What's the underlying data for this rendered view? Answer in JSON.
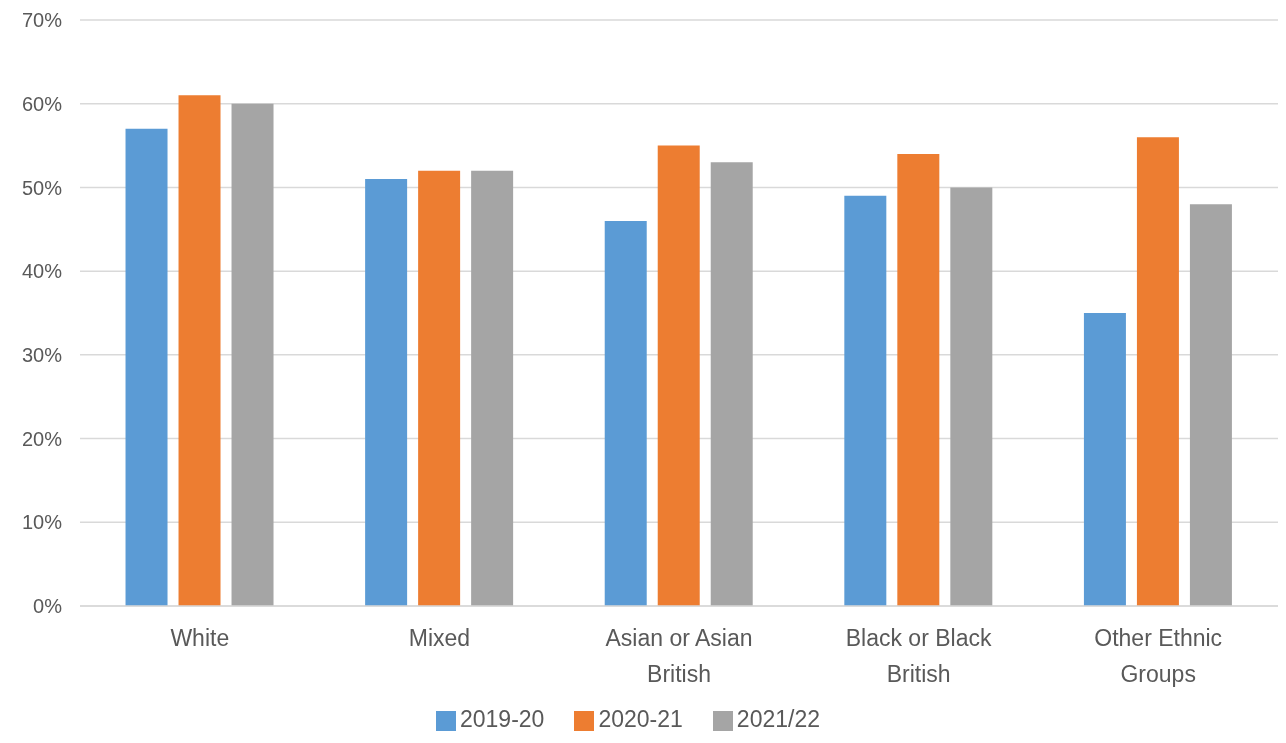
{
  "chart_data": {
    "type": "bar",
    "categories": [
      "White",
      "Mixed",
      "Asian or Asian British",
      "Black or Black British",
      "Other Ethnic Groups"
    ],
    "series": [
      {
        "name": "2019-20",
        "color": "#5b9bd5",
        "values": [
          57,
          51,
          46,
          49,
          35
        ]
      },
      {
        "name": "2020-21",
        "color": "#ed7d31",
        "values": [
          61,
          52,
          55,
          54,
          56
        ]
      },
      {
        "name": "2021/22",
        "color": "#a5a5a5",
        "values": [
          60,
          52,
          53,
          50,
          48
        ]
      }
    ],
    "ylim": [
      0,
      70
    ],
    "yticks": [
      {
        "value": 0,
        "label": "0%"
      },
      {
        "value": 10,
        "label": "10%"
      },
      {
        "value": 20,
        "label": "20%"
      },
      {
        "value": 30,
        "label": "30%"
      },
      {
        "value": 40,
        "label": "40%"
      },
      {
        "value": 50,
        "label": "50%"
      },
      {
        "value": 60,
        "label": "60%"
      },
      {
        "value": 70,
        "label": "70%"
      }
    ],
    "grid": "y",
    "legend": "bottom"
  }
}
